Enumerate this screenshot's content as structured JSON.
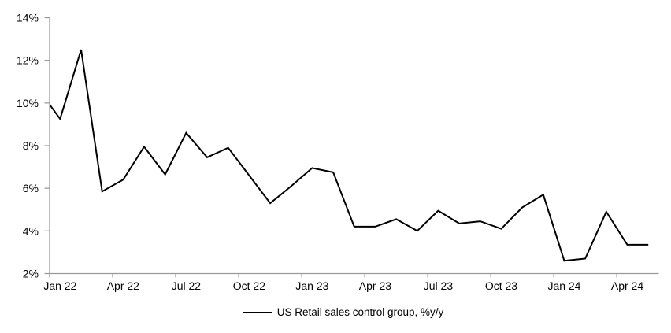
{
  "legend": {
    "label": "US Retail sales control group, %y/y"
  },
  "colors": {
    "line": "#000000",
    "axis": "#999999",
    "label_text": "#000000",
    "background": "#ffffff"
  },
  "chart_data": {
    "type": "line",
    "title": "",
    "xlabel": "",
    "ylabel": "",
    "categories": [
      "Dec 21",
      "Jan 22",
      "Feb 22",
      "Mar 22",
      "Apr 22",
      "May 22",
      "Jun 22",
      "Jul 22",
      "Aug 22",
      "Sep 22",
      "Oct 22",
      "Nov 22",
      "Dec 22",
      "Jan 23",
      "Feb 23",
      "Mar 23",
      "Apr 23",
      "May 23",
      "Jun 23",
      "Jul 23",
      "Aug 23",
      "Sep 23",
      "Oct 23",
      "Nov 23",
      "Dec 23",
      "Jan 24",
      "Feb 24",
      "Mar 24",
      "Apr 24",
      "May 24"
    ],
    "values": [
      10.6,
      9.25,
      12.5,
      5.85,
      6.4,
      7.95,
      6.65,
      8.6,
      7.45,
      7.9,
      6.6,
      5.3,
      6.1,
      6.95,
      6.75,
      4.2,
      4.2,
      4.55,
      4.0,
      4.95,
      4.35,
      4.45,
      4.1,
      5.1,
      5.7,
      2.6,
      2.7,
      4.9,
      3.35,
      3.35
    ],
    "series_name": "US Retail sales control group, %y/y",
    "ylim": [
      2,
      14
    ],
    "y_tick_labels": [
      "2%",
      "4%",
      "6%",
      "8%",
      "10%",
      "12%",
      "14%"
    ],
    "x_tick_labels": [
      "Jan 22",
      "Apr 22",
      "Jul 22",
      "Oct 22",
      "Jan 23",
      "Apr 23",
      "Jul 23",
      "Oct 23",
      "Jan 24",
      "Apr 24"
    ],
    "x_tick_every_n_categories": 3,
    "grid": false,
    "legend_position": "bottom-center",
    "first_point_partially_clipped": true
  }
}
